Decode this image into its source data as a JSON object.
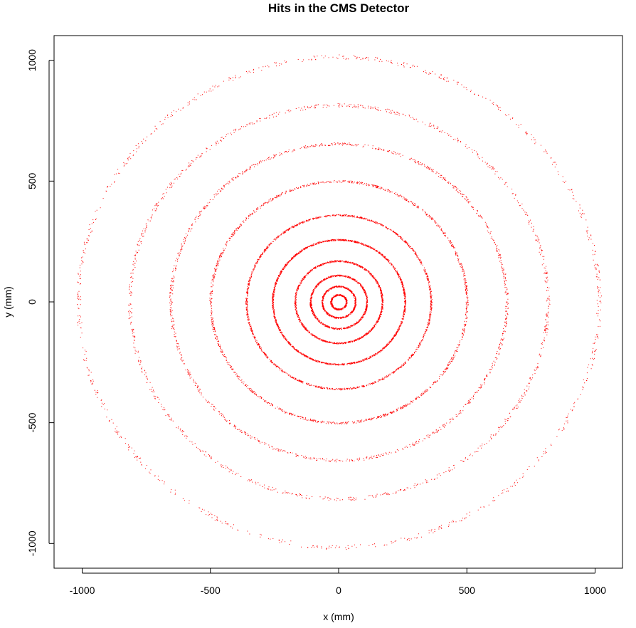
{
  "chart_data": {
    "type": "scatter",
    "title": "Hits in the CMS Detector",
    "xlabel": "x (mm)",
    "ylabel": "y (mm)",
    "xlim": [
      -1000,
      1000
    ],
    "ylim": [
      -1000,
      1000
    ],
    "x_ticks": [
      -1000,
      -500,
      0,
      500,
      1000
    ],
    "y_ticks": [
      -1000,
      -500,
      0,
      500,
      1000
    ],
    "grid": false,
    "legend": "none",
    "point_color": "#ff0000",
    "description_of_data": "rings",
    "series": [
      {
        "values": [
          {
            "radius": 30,
            "hits": 420
          },
          {
            "radius": 65,
            "hits": 600
          },
          {
            "radius": 110,
            "hits": 850
          },
          {
            "radius": 170,
            "hits": 1200
          },
          {
            "radius": 258,
            "hits": 1700
          },
          {
            "radius": 360,
            "hits": 1500
          },
          {
            "radius": 500,
            "hits": 1300
          },
          {
            "radius": 655,
            "hits": 1100
          },
          {
            "radius": 815,
            "hits": 950
          },
          {
            "radius": 1015,
            "hits": 800
          }
        ]
      }
    ]
  }
}
